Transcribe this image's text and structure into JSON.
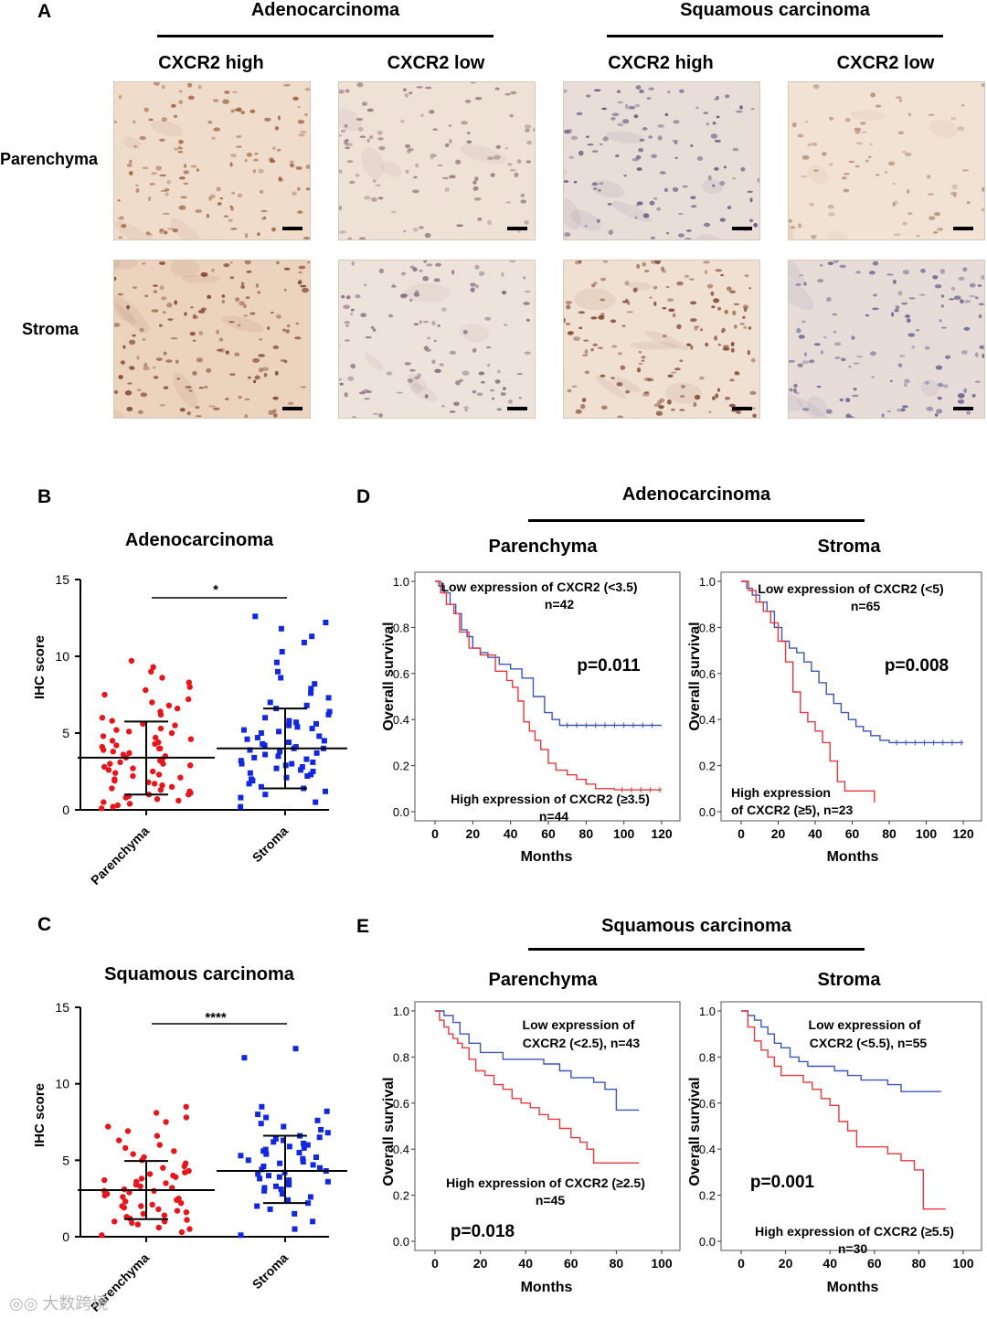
{
  "panel_a": {
    "letter": "A",
    "groups": [
      "Adenocarcinoma",
      "Squamous carcinoma"
    ],
    "columns": [
      "CXCR2 high",
      "CXCR2 low",
      "CXCR2 high",
      "CXCR2 low"
    ],
    "rows": [
      "Parenchyma",
      "Stroma"
    ],
    "tiles": [
      {
        "base": "#efdccb",
        "nuclei": "#9a5a3c",
        "density": 130
      },
      {
        "base": "#eee2d6",
        "nuclei": "#8c6a72",
        "density": 100
      },
      {
        "base": "#e9ddd8",
        "nuclei": "#5c4a78",
        "density": 110
      },
      {
        "base": "#f1e2d3",
        "nuclei": "#b08a72",
        "density": 70
      },
      {
        "base": "#ecd3bd",
        "nuclei": "#7a3c26",
        "density": 140
      },
      {
        "base": "#eee3da",
        "nuclei": "#7a6078",
        "density": 110
      },
      {
        "base": "#efe0d2",
        "nuclei": "#7a3a24",
        "density": 150
      },
      {
        "base": "#e8dcd8",
        "nuclei": "#5a5a8c",
        "density": 120
      }
    ]
  },
  "panel_b": {
    "letter": "B",
    "title": "Adenocarcinoma",
    "ylabel": "IHC score",
    "significance": "*"
  },
  "panel_c": {
    "letter": "C",
    "title": "Squamous carcinoma",
    "ylabel": "IHC score",
    "significance": "****"
  },
  "panel_d": {
    "letter": "D",
    "header": "Adenocarcinoma",
    "left_title": "Parenchyma",
    "right_title": "Stroma",
    "ylabel": "Overall survival",
    "xlabel": "Months",
    "left": {
      "low_label_1": "Low expression of CXCR2 (<3.5)",
      "low_label_2": "n=42",
      "high_label_1": "High expression of CXCR2 (≥3.5)",
      "high_label_2": "n=44",
      "pvalue": "p=0.011"
    },
    "right": {
      "low_label_1": "Low expression of CXCR2 (<5)",
      "low_label_2": "n=65",
      "high_label_1": "High expression",
      "high_label_2": "of CXCR2 (≥5), n=23",
      "pvalue": "p=0.008"
    }
  },
  "panel_e": {
    "letter": "E",
    "header": "Squamous carcinoma",
    "left_title": "Parenchyma",
    "right_title": "Stroma",
    "ylabel": "Overall survival",
    "xlabel": "Months",
    "left": {
      "low_label_1": "Low expression of",
      "low_label_2": "CXCR2 (<2.5), n=43",
      "high_label_1": "High expression of CXCR2 (≥2.5)",
      "high_label_2": "n=45",
      "pvalue": "p=0.018"
    },
    "right": {
      "low_label_1": "Low expression of",
      "low_label_2": "CXCR2 (<5.5), n=55",
      "high_label_1": "High expression of CXCR2 (≥5.5)",
      "high_label_2": "n=30",
      "pvalue": "p=0.001"
    }
  },
  "watermark": "大数跨境",
  "chart_data": [
    {
      "id": "B",
      "type": "scatter",
      "title": "Adenocarcinoma",
      "ylabel": "IHC score",
      "categories": [
        "Parenchyma",
        "Stroma"
      ],
      "ylim": [
        0,
        15
      ],
      "yticks": [
        0,
        5,
        10,
        15
      ],
      "colors": [
        "#e8161b",
        "#1228e0"
      ],
      "series": [
        {
          "name": "Parenchyma",
          "mean": 3.4,
          "sd_low": 1.0,
          "sd_high": 5.75,
          "values": [
            0.1,
            0.2,
            0.3,
            0.4,
            0.5,
            0.6,
            0.7,
            0.8,
            0.9,
            1.0,
            1.0,
            1.1,
            1.2,
            1.3,
            1.4,
            1.5,
            1.6,
            1.7,
            1.8,
            1.9,
            2.0,
            2.1,
            2.2,
            2.3,
            2.4,
            2.5,
            2.6,
            2.7,
            2.8,
            2.9,
            3.0,
            3.0,
            3.1,
            3.2,
            3.3,
            3.4,
            3.5,
            3.6,
            3.7,
            3.8,
            3.9,
            4.0,
            4.0,
            4.1,
            4.2,
            4.3,
            4.4,
            4.5,
            4.6,
            4.7,
            4.8,
            5.0,
            5.1,
            5.2,
            5.3,
            5.5,
            5.6,
            5.8,
            6.0,
            6.2,
            6.4,
            6.6,
            6.8,
            7.0,
            7.2,
            7.5,
            7.8,
            8.0,
            8.3,
            8.6,
            9.0,
            9.3,
            9.7
          ]
        },
        {
          "name": "Stroma",
          "mean": 4.0,
          "sd_low": 1.4,
          "sd_high": 6.6,
          "values": [
            0.2,
            0.5,
            0.8,
            1.0,
            1.2,
            1.4,
            1.5,
            1.7,
            1.9,
            2.0,
            2.1,
            2.2,
            2.3,
            2.4,
            2.5,
            2.6,
            2.7,
            2.8,
            2.9,
            3.0,
            3.0,
            3.1,
            3.2,
            3.3,
            3.4,
            3.5,
            3.6,
            3.7,
            3.8,
            3.9,
            4.0,
            4.0,
            4.1,
            4.2,
            4.3,
            4.4,
            4.5,
            4.6,
            4.7,
            4.8,
            5.0,
            5.1,
            5.2,
            5.3,
            5.4,
            5.5,
            5.6,
            5.7,
            5.8,
            6.0,
            6.2,
            6.4,
            6.6,
            6.8,
            7.0,
            7.3,
            7.6,
            7.9,
            8.2,
            8.6,
            9.0,
            9.6,
            10.3,
            10.9,
            11.3,
            11.8,
            12.2,
            12.6
          ]
        }
      ]
    },
    {
      "id": "C",
      "type": "scatter",
      "title": "Squamous carcinoma",
      "ylabel": "IHC score",
      "categories": [
        "Parenchyma",
        "Stroma"
      ],
      "ylim": [
        0,
        15
      ],
      "yticks": [
        0,
        5,
        10,
        15
      ],
      "colors": [
        "#e8161b",
        "#1228e0"
      ],
      "series": [
        {
          "name": "Parenchyma",
          "mean": 3.05,
          "sd_low": 1.15,
          "sd_high": 4.95,
          "values": [
            0.1,
            0.3,
            0.5,
            0.6,
            0.8,
            0.9,
            1.0,
            1.0,
            1.1,
            1.2,
            1.3,
            1.4,
            1.5,
            1.6,
            1.7,
            1.8,
            1.9,
            2.0,
            2.0,
            2.1,
            2.2,
            2.3,
            2.4,
            2.5,
            2.6,
            2.7,
            2.8,
            2.9,
            3.0,
            3.0,
            3.1,
            3.2,
            3.3,
            3.4,
            3.5,
            3.6,
            3.7,
            3.8,
            3.9,
            4.0,
            4.1,
            4.2,
            4.3,
            4.5,
            4.6,
            4.8,
            5.0,
            5.2,
            5.4,
            5.6,
            5.8,
            6.0,
            6.3,
            6.6,
            6.9,
            7.2,
            7.5,
            7.8,
            8.1,
            8.5
          ]
        },
        {
          "name": "Stroma",
          "mean": 4.3,
          "sd_low": 2.2,
          "sd_high": 6.6,
          "values": [
            0.1,
            0.5,
            1.0,
            1.5,
            1.8,
            2.0,
            2.2,
            2.4,
            2.6,
            2.8,
            3.0,
            3.1,
            3.2,
            3.3,
            3.4,
            3.5,
            3.6,
            3.7,
            3.8,
            3.9,
            4.0,
            4.1,
            4.2,
            4.3,
            4.4,
            4.5,
            4.6,
            4.7,
            4.8,
            4.9,
            5.0,
            5.1,
            5.2,
            5.3,
            5.4,
            5.5,
            5.6,
            5.7,
            5.8,
            5.9,
            6.0,
            6.1,
            6.2,
            6.3,
            6.4,
            6.5,
            6.6,
            6.8,
            7.0,
            7.2,
            7.4,
            7.6,
            7.8,
            8.0,
            8.2,
            8.5,
            11.7,
            12.3
          ]
        }
      ]
    },
    {
      "id": "D-left",
      "type": "line",
      "title": "Parenchyma",
      "xlabel": "Months",
      "ylabel": "Overall survival",
      "xlim": [
        0,
        120
      ],
      "ylim": [
        0,
        1
      ],
      "xticks": [
        0,
        20,
        40,
        60,
        80,
        100,
        120
      ],
      "yticks": [
        0.0,
        0.2,
        0.4,
        0.6,
        0.8,
        1.0
      ],
      "pvalue": "p=0.011",
      "series": [
        {
          "name": "Low expression of CXCR2 (<3.5)",
          "color": "#3b57b8",
          "x": [
            0,
            2,
            5,
            8,
            11,
            14,
            17,
            20,
            24,
            28,
            34,
            40,
            46,
            52,
            58,
            62,
            66,
            120
          ],
          "y": [
            1.0,
            0.98,
            0.95,
            0.9,
            0.86,
            0.79,
            0.76,
            0.71,
            0.69,
            0.67,
            0.64,
            0.62,
            0.58,
            0.5,
            0.43,
            0.4,
            0.375,
            0.375
          ]
        },
        {
          "name": "High expression of CXCR2 (≥3.5)",
          "color": "#e8383d",
          "x": [
            0,
            3,
            6,
            10,
            13,
            18,
            24,
            32,
            38,
            41,
            44,
            47,
            50,
            53,
            56,
            60,
            64,
            70,
            75,
            80,
            85,
            95,
            120
          ],
          "y": [
            1.0,
            0.95,
            0.9,
            0.86,
            0.78,
            0.71,
            0.68,
            0.61,
            0.57,
            0.54,
            0.48,
            0.39,
            0.35,
            0.31,
            0.27,
            0.21,
            0.18,
            0.16,
            0.14,
            0.12,
            0.1,
            0.095,
            0.095
          ]
        }
      ]
    },
    {
      "id": "D-right",
      "type": "line",
      "title": "Stroma",
      "xlabel": "Months",
      "ylabel": "Overall survival",
      "xlim": [
        0,
        120
      ],
      "ylim": [
        0,
        1
      ],
      "xticks": [
        0,
        20,
        40,
        60,
        80,
        100,
        120
      ],
      "yticks": [
        0.0,
        0.2,
        0.4,
        0.6,
        0.8,
        1.0
      ],
      "pvalue": "p=0.008",
      "series": [
        {
          "name": "Low expression of CXCR2 (<5)",
          "color": "#3b57b8",
          "x": [
            0,
            3,
            6,
            10,
            14,
            18,
            22,
            26,
            30,
            34,
            38,
            42,
            46,
            50,
            54,
            58,
            62,
            66,
            70,
            75,
            80,
            120
          ],
          "y": [
            1.0,
            0.97,
            0.94,
            0.91,
            0.87,
            0.8,
            0.74,
            0.71,
            0.69,
            0.65,
            0.61,
            0.56,
            0.51,
            0.47,
            0.43,
            0.4,
            0.37,
            0.35,
            0.33,
            0.31,
            0.3,
            0.3
          ]
        },
        {
          "name": "High expression of CXCR2 (≥5)",
          "color": "#e8383d",
          "x": [
            0,
            4,
            8,
            12,
            16,
            20,
            24,
            28,
            32,
            36,
            40,
            44,
            48,
            52,
            56,
            62,
            68,
            72
          ],
          "y": [
            1.0,
            0.96,
            0.91,
            0.87,
            0.82,
            0.74,
            0.65,
            0.52,
            0.43,
            0.39,
            0.35,
            0.3,
            0.22,
            0.13,
            0.09,
            0.09,
            0.09,
            0.04
          ]
        }
      ]
    },
    {
      "id": "E-left",
      "type": "line",
      "title": "Parenchyma",
      "xlabel": "Months",
      "ylabel": "Overall survival",
      "xlim": [
        0,
        100
      ],
      "ylim": [
        0,
        1
      ],
      "xticks": [
        0,
        20,
        40,
        60,
        80,
        100
      ],
      "yticks": [
        0.0,
        0.2,
        0.4,
        0.6,
        0.8,
        1.0
      ],
      "pvalue": "p=0.018",
      "series": [
        {
          "name": "Low expression of CXCR2 (<2.5), n=43",
          "color": "#3b57b8",
          "x": [
            0,
            4,
            8,
            11,
            15,
            20,
            30,
            45,
            48,
            55,
            60,
            70,
            75,
            80,
            90
          ],
          "y": [
            1.0,
            0.98,
            0.95,
            0.9,
            0.86,
            0.82,
            0.79,
            0.79,
            0.77,
            0.74,
            0.71,
            0.69,
            0.66,
            0.57,
            0.57
          ]
        },
        {
          "name": "High expression of CXCR2 (≥2.5) n=45",
          "color": "#e8383d",
          "x": [
            0,
            2,
            4,
            6,
            8,
            10,
            12,
            15,
            18,
            22,
            26,
            30,
            34,
            38,
            42,
            46,
            50,
            55,
            60,
            64,
            67,
            70,
            75,
            90
          ],
          "y": [
            1.0,
            0.96,
            0.93,
            0.9,
            0.88,
            0.86,
            0.84,
            0.79,
            0.74,
            0.72,
            0.68,
            0.66,
            0.62,
            0.6,
            0.58,
            0.55,
            0.53,
            0.49,
            0.45,
            0.43,
            0.4,
            0.34,
            0.34,
            0.34
          ]
        }
      ]
    },
    {
      "id": "E-right",
      "type": "line",
      "title": "Stroma",
      "xlabel": "Months",
      "ylabel": "Overall survival",
      "xlim": [
        0,
        100
      ],
      "ylim": [
        0,
        1
      ],
      "xticks": [
        0,
        20,
        40,
        60,
        80,
        100
      ],
      "yticks": [
        0.0,
        0.2,
        0.4,
        0.6,
        0.8,
        1.0
      ],
      "pvalue": "p=0.001",
      "series": [
        {
          "name": "Low expression of CXCR2 (<5.5), n=55",
          "color": "#3b57b8",
          "x": [
            0,
            3,
            6,
            9,
            12,
            15,
            18,
            22,
            26,
            30,
            36,
            42,
            48,
            54,
            60,
            66,
            72,
            78,
            84,
            90
          ],
          "y": [
            1.0,
            0.98,
            0.96,
            0.93,
            0.9,
            0.86,
            0.84,
            0.8,
            0.78,
            0.76,
            0.76,
            0.74,
            0.72,
            0.7,
            0.7,
            0.68,
            0.65,
            0.65,
            0.65,
            0.65
          ]
        },
        {
          "name": "High expression of CXCR2 (≥5.5) n=30",
          "color": "#e8383d",
          "x": [
            0,
            3,
            6,
            9,
            12,
            15,
            18,
            24,
            28,
            32,
            36,
            40,
            44,
            48,
            52,
            56,
            60,
            66,
            72,
            78,
            82,
            86,
            92
          ],
          "y": [
            1.0,
            0.93,
            0.87,
            0.83,
            0.8,
            0.76,
            0.72,
            0.72,
            0.69,
            0.66,
            0.62,
            0.59,
            0.52,
            0.48,
            0.41,
            0.41,
            0.41,
            0.38,
            0.35,
            0.31,
            0.14,
            0.14,
            0.14
          ]
        }
      ]
    }
  ]
}
